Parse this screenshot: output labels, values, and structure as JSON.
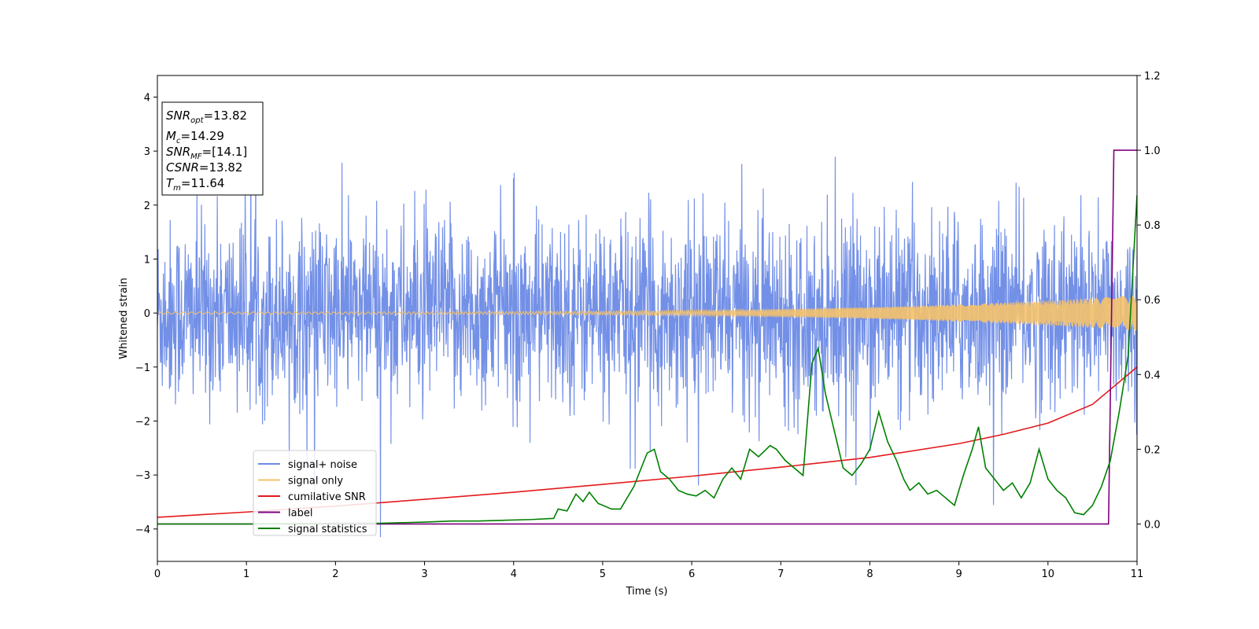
{
  "chart_data": {
    "type": "line",
    "xlabel": "Time (s)",
    "ylabel": "Whitened strain",
    "xlim": [
      0,
      11
    ],
    "ylim_left": [
      -4.6,
      4.4
    ],
    "ylim_right": [
      -0.1,
      1.2
    ],
    "x_ticks": [
      "0",
      "1",
      "2",
      "3",
      "4",
      "5",
      "6",
      "7",
      "8",
      "9",
      "10",
      "11"
    ],
    "y_ticks_left": [
      "−4",
      "−3",
      "−2",
      "−1",
      "0",
      "1",
      "2",
      "3",
      "4"
    ],
    "y_ticks_right": [
      "0.0",
      "0.2",
      "0.4",
      "0.6",
      "0.8",
      "1.0",
      "1.2"
    ],
    "grid": false,
    "legend_position": "lower-left",
    "annotation": [
      {
        "var": "SNR",
        "sub": "opt",
        "value": "=13.82"
      },
      {
        "var": "M",
        "sub": "c",
        "value": "=14.29"
      },
      {
        "var": "SNR",
        "sub": "MF",
        "value": "=[14.1]"
      },
      {
        "var": "CSNR",
        "sub": "",
        "value": "=13.82"
      },
      {
        "var": "T",
        "sub": "m",
        "value": "=11.64"
      }
    ],
    "series": [
      {
        "name": "signal+ noise",
        "color": "#6b8ae6",
        "axis": "left",
        "kind": "noise",
        "std": 0.85
      },
      {
        "name": "signal only",
        "color": "#f5c26b",
        "axis": "left",
        "kind": "chirp",
        "amp_start": 0.02,
        "amp_end": 0.33
      },
      {
        "name": "cumilative SNR",
        "color": "#e41a1c",
        "axis": "right",
        "x": [
          0,
          1,
          2,
          3,
          4,
          5,
          6,
          7,
          8,
          9,
          9.5,
          10,
          10.5,
          11
        ],
        "y": [
          0.018,
          0.032,
          0.048,
          0.066,
          0.085,
          0.106,
          0.128,
          0.152,
          0.178,
          0.215,
          0.24,
          0.27,
          0.32,
          0.42
        ]
      },
      {
        "name": "label",
        "color": "#800080",
        "axis": "right",
        "x": [
          0,
          10.68,
          10.74,
          11
        ],
        "y": [
          0.0,
          0.0,
          1.0,
          1.0
        ]
      },
      {
        "name": "signal statistics",
        "color": "#008000",
        "axis": "right",
        "x": [
          0,
          1,
          2,
          2.5,
          3,
          3.3,
          3.6,
          3.9,
          4.2,
          4.45,
          4.5,
          4.6,
          4.7,
          4.78,
          4.85,
          4.95,
          5.1,
          5.2,
          5.35,
          5.5,
          5.58,
          5.65,
          5.75,
          5.85,
          5.95,
          6.05,
          6.15,
          6.2,
          6.25,
          6.35,
          6.45,
          6.55,
          6.65,
          6.75,
          6.88,
          6.95,
          7.05,
          7.15,
          7.25,
          7.35,
          7.42,
          7.5,
          7.6,
          7.7,
          7.8,
          7.9,
          8.0,
          8.1,
          8.2,
          8.3,
          8.38,
          8.45,
          8.55,
          8.65,
          8.75,
          8.85,
          8.95,
          9.05,
          9.15,
          9.22,
          9.3,
          9.4,
          9.5,
          9.6,
          9.7,
          9.8,
          9.9,
          10.0,
          10.1,
          10.2,
          10.3,
          10.4,
          10.5,
          10.6,
          10.7,
          10.8,
          10.9,
          11.0
        ],
        "y": [
          0.0,
          0.0,
          0.002,
          0.002,
          0.005,
          0.008,
          0.008,
          0.01,
          0.012,
          0.015,
          0.04,
          0.035,
          0.08,
          0.06,
          0.085,
          0.055,
          0.04,
          0.04,
          0.1,
          0.19,
          0.2,
          0.14,
          0.12,
          0.09,
          0.08,
          0.075,
          0.09,
          0.08,
          0.07,
          0.12,
          0.15,
          0.12,
          0.2,
          0.18,
          0.21,
          0.2,
          0.17,
          0.15,
          0.13,
          0.43,
          0.47,
          0.35,
          0.25,
          0.15,
          0.13,
          0.16,
          0.2,
          0.3,
          0.22,
          0.17,
          0.12,
          0.09,
          0.11,
          0.08,
          0.09,
          0.07,
          0.05,
          0.13,
          0.2,
          0.26,
          0.15,
          0.12,
          0.09,
          0.11,
          0.07,
          0.11,
          0.2,
          0.12,
          0.09,
          0.07,
          0.03,
          0.025,
          0.05,
          0.1,
          0.17,
          0.3,
          0.45,
          0.88
        ]
      }
    ]
  }
}
